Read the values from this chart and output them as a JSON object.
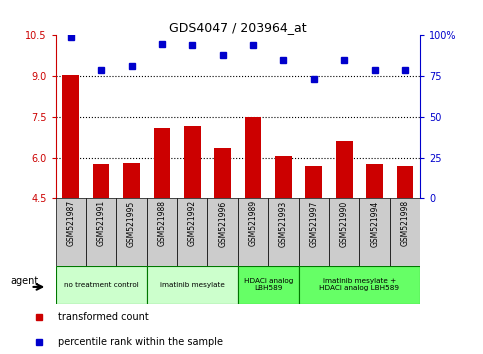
{
  "title": "GDS4047 / 203964_at",
  "samples": [
    "GSM521987",
    "GSM521991",
    "GSM521995",
    "GSM521988",
    "GSM521992",
    "GSM521996",
    "GSM521989",
    "GSM521993",
    "GSM521997",
    "GSM521990",
    "GSM521994",
    "GSM521998"
  ],
  "bar_values": [
    9.05,
    5.75,
    5.8,
    7.1,
    7.15,
    6.35,
    7.5,
    6.05,
    5.7,
    6.6,
    5.75,
    5.7
  ],
  "dot_values": [
    99,
    79,
    81,
    95,
    94,
    88,
    94,
    85,
    73,
    85,
    79,
    79
  ],
  "ylim_left": [
    4.5,
    10.5
  ],
  "ylim_right": [
    0,
    100
  ],
  "yticks_left": [
    4.5,
    6.0,
    7.5,
    9.0,
    10.5
  ],
  "yticks_right": [
    0,
    25,
    50,
    75,
    100
  ],
  "hlines": [
    6.0,
    7.5,
    9.0
  ],
  "bar_color": "#cc0000",
  "dot_color": "#0000cc",
  "groups": [
    {
      "label": "no treatment control",
      "start": 0,
      "end": 3,
      "color": "#ccffcc"
    },
    {
      "label": "imatinib mesylate",
      "start": 3,
      "end": 6,
      "color": "#ccffcc"
    },
    {
      "label": "HDACi analog\nLBH589",
      "start": 6,
      "end": 8,
      "color": "#66ff66"
    },
    {
      "label": "imatinib mesylate +\nHDACi analog LBH589",
      "start": 8,
      "end": 12,
      "color": "#66ff66"
    }
  ],
  "xlabel_agent": "agent",
  "legend_bar": "transformed count",
  "legend_dot": "percentile rank within the sample",
  "tick_bg_color": "#cccccc",
  "group_border_color": "#007700"
}
